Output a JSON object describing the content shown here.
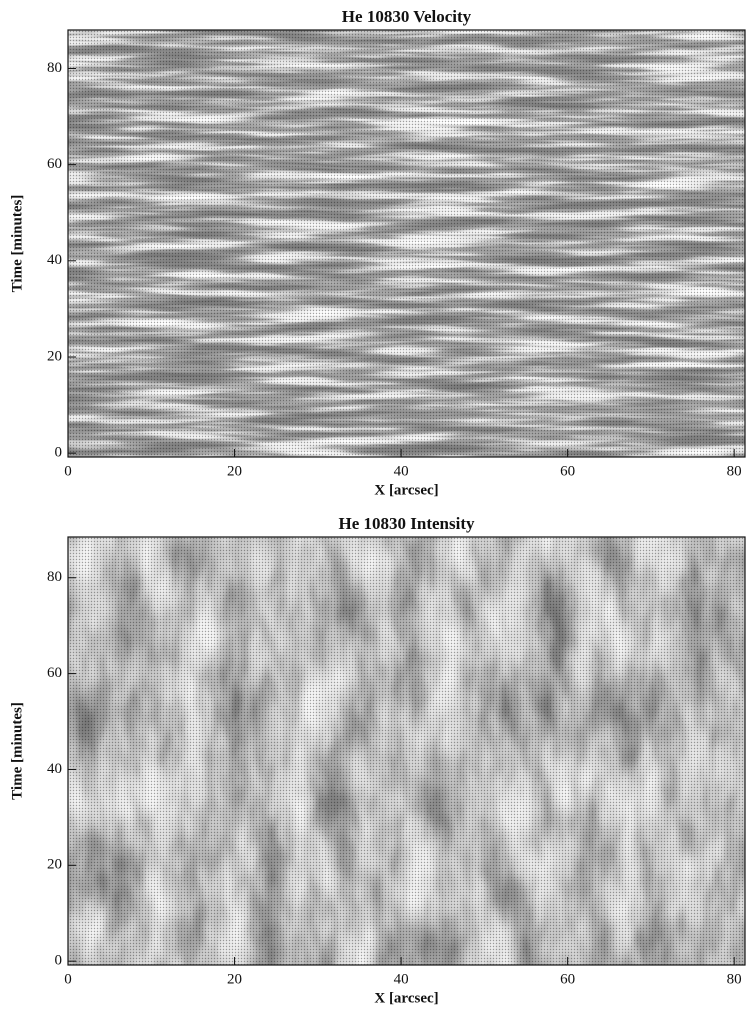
{
  "chart_data": [
    {
      "type": "image",
      "title": "He 10830 Velocity",
      "xlabel": "X [arcsec]",
      "ylabel": "Time [minutes]",
      "xlim": [
        0,
        81.3
      ],
      "ylim": [
        -0.8,
        88
      ],
      "xticks": [
        0,
        20,
        40,
        60,
        80
      ],
      "yticks": [
        0,
        20,
        40,
        60,
        80
      ]
    },
    {
      "type": "image",
      "title": "He 10830 Intensity",
      "xlabel": "X [arcsec]",
      "ylabel": "Time [minutes]",
      "xlim": [
        0,
        81.3
      ],
      "ylim": [
        -0.8,
        88.5
      ],
      "xticks": [
        0,
        20,
        40,
        60,
        80
      ],
      "yticks": [
        0,
        20,
        40,
        60,
        80
      ]
    }
  ]
}
